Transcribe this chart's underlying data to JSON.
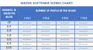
{
  "title": "WATER SOFTENER SIZING CHART",
  "col0_header_lines": [
    "HARDNESS, IN",
    "GRAINS PER",
    "GALLON"
  ],
  "col_main_header": "NUMBER OF PEOPLE IN THE HOUSE",
  "col_headers": [
    "1 TO 2",
    "3 TO 4",
    "5 TO 6",
    "7 TO 8"
  ],
  "row_labels": [
    "0-10",
    "11-20",
    "21-30",
    "31-40",
    "41-50",
    "51-75",
    "76-100"
  ],
  "data": [
    [
      "16,000/day",
      "24,000/day",
      "32,000/day",
      "40,000/day"
    ],
    [
      "24,000/day",
      "32,000/day",
      "40,000/day",
      "48,000/day"
    ],
    [
      "32,000/day",
      "40,000/day",
      "48,000/day",
      "64,000/day"
    ],
    [
      "40,000/day",
      "48,000/day",
      "64,000/day",
      "80,000/day"
    ],
    [
      "48,000/day",
      "64,000/day",
      "80,000/day",
      "96,000/day"
    ],
    [
      "64,000/day",
      "96,000/day",
      "110,000/day",
      "110,000/day"
    ],
    [
      "96,000/day",
      "96,000/day",
      "110,000/day",
      "110,000/day"
    ]
  ],
  "alt_row_colors": [
    "#dce6f1",
    "#ffffff"
  ],
  "header_bg": "#4472c4",
  "header_text": "#ffffff",
  "title_color": "#4472c4",
  "border_color": "#4472c4",
  "data_text_color": "#1f5fa6",
  "row_label_text": "#000000",
  "bg_color": "#ffffff"
}
